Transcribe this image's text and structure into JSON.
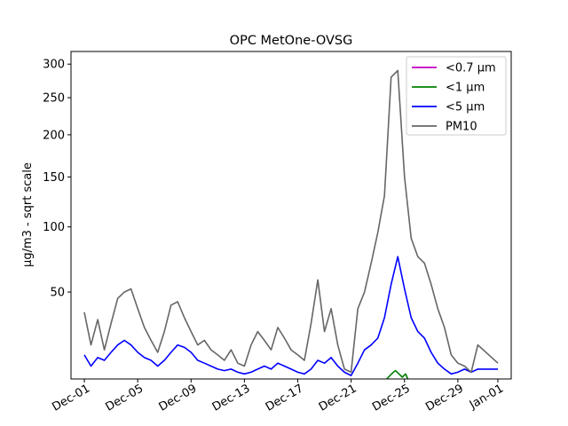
{
  "chart_data": {
    "type": "line",
    "title": "OPC MetOne-OVSG",
    "xlabel": "",
    "ylabel": "µg/m3 - sqrt scale",
    "y_scale": "sqrt",
    "ylim": [
      10,
      320
    ],
    "xlim": [
      "2023-11-30",
      "2024-01-02"
    ],
    "y_ticks": [
      50,
      100,
      150,
      200,
      250,
      300
    ],
    "x_ticks": [
      "Dec-01",
      "Dec-05",
      "Dec-09",
      "Dec-13",
      "Dec-17",
      "Dec-21",
      "Dec-25",
      "Dec-29",
      "Jan-01"
    ],
    "x_tick_dates": [
      "2023-12-01",
      "2023-12-05",
      "2023-12-09",
      "2023-12-13",
      "2023-12-17",
      "2023-12-21",
      "2023-12-25",
      "2023-12-29",
      "2024-01-01"
    ],
    "legend_position": "top-right",
    "grid": false,
    "series": [
      {
        "name": "<0.7 µm",
        "color": "#bf00bf",
        "x": [],
        "y": []
      },
      {
        "name": "<1 µm",
        "color": "#008000",
        "x": [
          "2023-12-23T16:00",
          "2023-12-23T22:00",
          "2023-12-24T04:00",
          "2023-12-24T08:00",
          "2023-12-24T14:00",
          "2023-12-24T20:00",
          "2023-12-25T02:00",
          "2023-12-25T06:00"
        ],
        "y": [
          10,
          11,
          12,
          12.5,
          11.5,
          10.5,
          11.5,
          10
        ]
      },
      {
        "name": "<5 µm",
        "color": "#0000ff",
        "x": [
          "2023-12-01",
          "2023-12-01T12:00",
          "2023-12-02",
          "2023-12-02T12:00",
          "2023-12-03",
          "2023-12-03T12:00",
          "2023-12-04",
          "2023-12-04T12:00",
          "2023-12-05",
          "2023-12-05T12:00",
          "2023-12-06",
          "2023-12-06T12:00",
          "2023-12-07",
          "2023-12-07T12:00",
          "2023-12-08",
          "2023-12-08T12:00",
          "2023-12-09",
          "2023-12-09T12:00",
          "2023-12-10",
          "2023-12-10T12:00",
          "2023-12-11",
          "2023-12-11T12:00",
          "2023-12-12",
          "2023-12-12T12:00",
          "2023-12-13",
          "2023-12-13T12:00",
          "2023-12-14",
          "2023-12-14T12:00",
          "2023-12-15",
          "2023-12-15T12:00",
          "2023-12-16",
          "2023-12-16T12:00",
          "2023-12-17",
          "2023-12-17T12:00",
          "2023-12-18",
          "2023-12-18T12:00",
          "2023-12-19",
          "2023-12-19T12:00",
          "2023-12-20",
          "2023-12-20T12:00",
          "2023-12-21",
          "2023-12-21T12:00",
          "2023-12-22",
          "2023-12-22T12:00",
          "2023-12-23",
          "2023-12-23T12:00",
          "2023-12-24",
          "2023-12-24T12:00",
          "2023-12-25",
          "2023-12-25T12:00",
          "2023-12-26",
          "2023-12-26T12:00",
          "2023-12-27",
          "2023-12-27T12:00",
          "2023-12-28",
          "2023-12-28T12:00",
          "2023-12-29",
          "2023-12-29T12:00",
          "2023-12-30",
          "2023-12-30T12:00",
          "2024-01-01"
        ],
        "y": [
          18,
          14,
          17,
          16,
          19,
          22,
          24,
          22,
          19,
          17,
          16,
          14,
          16,
          19,
          22,
          21,
          19,
          16,
          15,
          14,
          13,
          12.5,
          13,
          12,
          11.5,
          12,
          13,
          14,
          13,
          15,
          14,
          13,
          12,
          11.5,
          13,
          16,
          15,
          17,
          14,
          12,
          11,
          15,
          20,
          22,
          25,
          35,
          55,
          75,
          52,
          35,
          28,
          25,
          19,
          15,
          13,
          11.5,
          12,
          13,
          12,
          13,
          13
        ]
      },
      {
        "name": "PM10",
        "color": "#666666",
        "x": [
          "2023-12-01",
          "2023-12-01T12:00",
          "2023-12-02",
          "2023-12-02T12:00",
          "2023-12-03",
          "2023-12-03T12:00",
          "2023-12-04",
          "2023-12-04T12:00",
          "2023-12-05",
          "2023-12-05T12:00",
          "2023-12-06",
          "2023-12-06T12:00",
          "2023-12-07",
          "2023-12-07T12:00",
          "2023-12-08",
          "2023-12-08T12:00",
          "2023-12-09",
          "2023-12-09T12:00",
          "2023-12-10",
          "2023-12-10T12:00",
          "2023-12-11",
          "2023-12-11T12:00",
          "2023-12-12",
          "2023-12-12T12:00",
          "2023-12-13",
          "2023-12-13T12:00",
          "2023-12-14",
          "2023-12-14T12:00",
          "2023-12-15",
          "2023-12-15T12:00",
          "2023-12-16",
          "2023-12-16T12:00",
          "2023-12-17",
          "2023-12-17T12:00",
          "2023-12-18",
          "2023-12-18T12:00",
          "2023-12-19",
          "2023-12-19T12:00",
          "2023-12-20",
          "2023-12-20T12:00",
          "2023-12-21",
          "2023-12-21T12:00",
          "2023-12-22",
          "2023-12-22T12:00",
          "2023-12-23",
          "2023-12-23T12:00",
          "2023-12-24",
          "2023-12-24T12:00",
          "2023-12-25",
          "2023-12-25T12:00",
          "2023-12-26",
          "2023-12-26T12:00",
          "2023-12-27",
          "2023-12-27T12:00",
          "2023-12-28",
          "2023-12-28T12:00",
          "2023-12-29",
          "2023-12-29T12:00",
          "2023-12-30",
          "2023-12-30T12:00",
          "2024-01-01"
        ],
        "y": [
          38,
          22,
          34,
          20,
          32,
          46,
          50,
          52,
          40,
          30,
          24,
          19,
          28,
          42,
          44,
          35,
          28,
          22,
          24,
          20,
          18,
          16,
          20,
          15,
          14,
          22,
          28,
          24,
          20,
          30,
          25,
          20,
          18,
          16,
          32,
          58,
          28,
          40,
          22,
          13,
          12,
          40,
          50,
          70,
          95,
          130,
          280,
          290,
          150,
          90,
          75,
          70,
          55,
          40,
          30,
          18,
          15,
          14,
          12,
          22,
          15
        ]
      }
    ]
  }
}
